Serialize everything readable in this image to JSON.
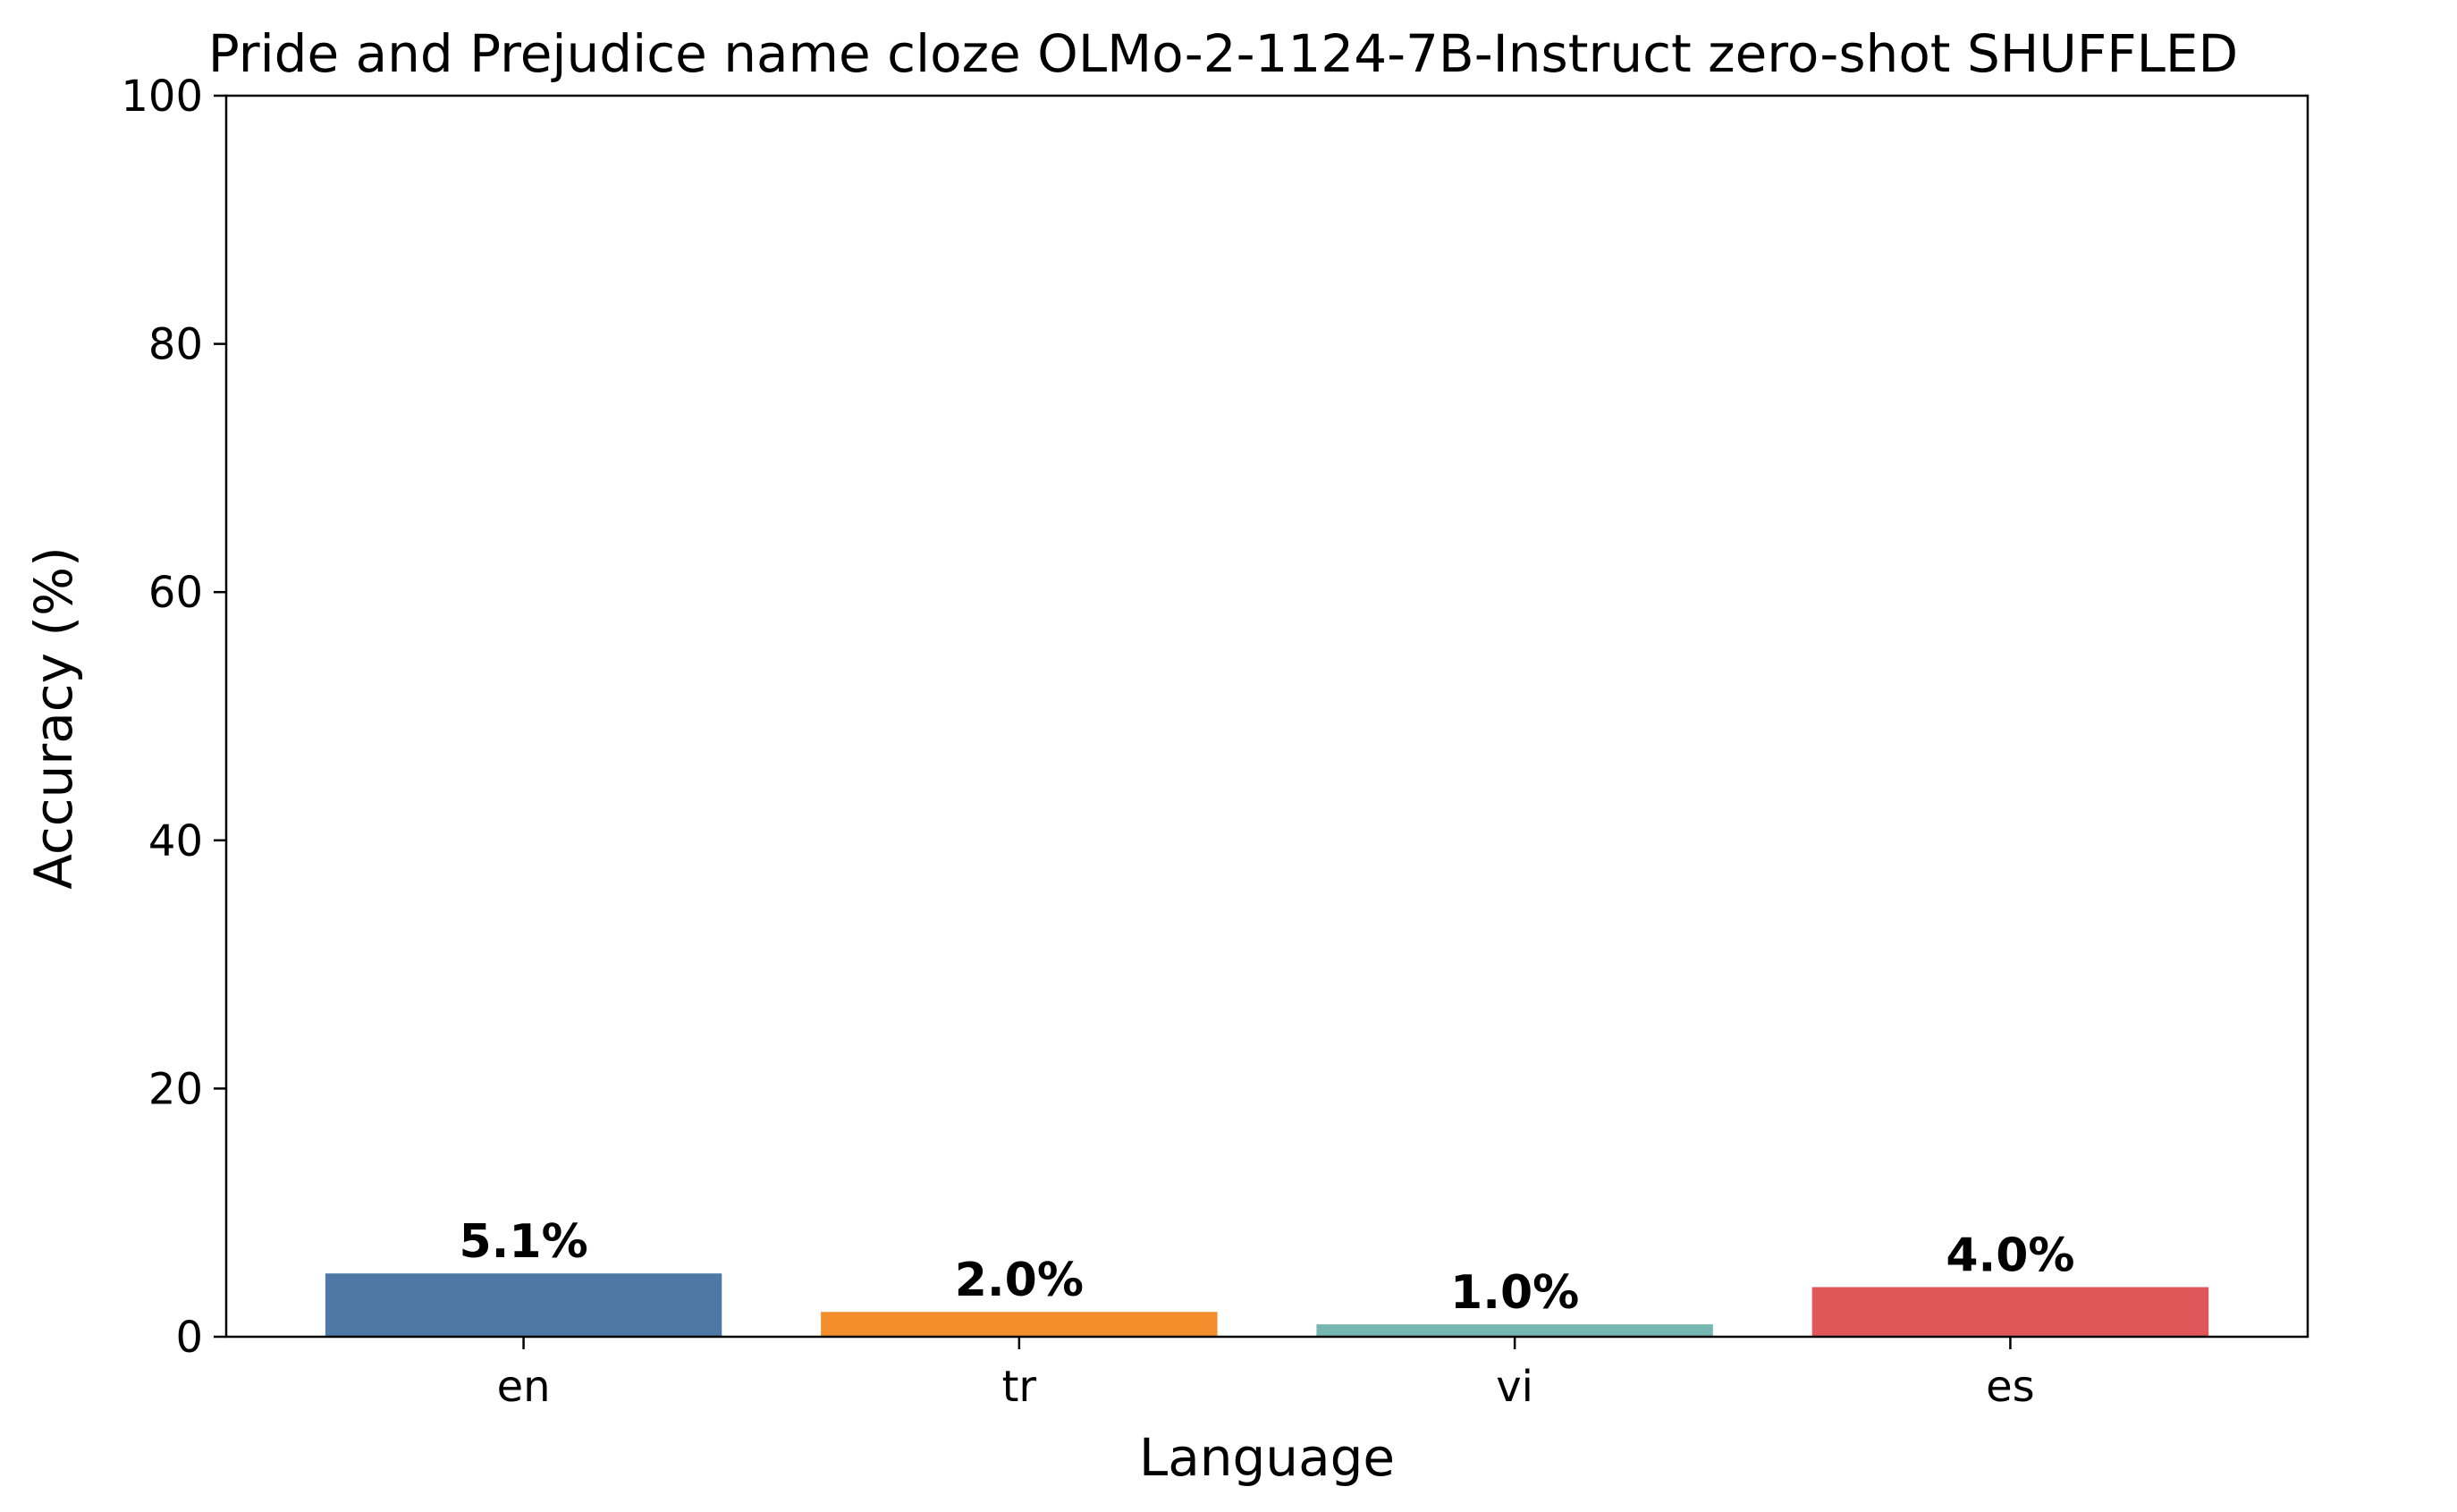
{
  "chart_data": {
    "type": "bar",
    "title": "Pride and Prejudice name cloze OLMo-2-1124-7B-Instruct zero-shot SHUFFLED",
    "xlabel": "Language",
    "ylabel": "Accuracy (%)",
    "categories": [
      "en",
      "tr",
      "vi",
      "es"
    ],
    "values": [
      5.1,
      2.0,
      1.0,
      4.0
    ],
    "value_labels": [
      "5.1%",
      "2.0%",
      "1.0%",
      "4.0%"
    ],
    "colors": [
      "#4e79a7",
      "#f28e2b",
      "#76b7b2",
      "#e15759"
    ],
    "ylim": [
      0,
      100
    ],
    "yticks": [
      0,
      20,
      40,
      60,
      80,
      100
    ],
    "grid": false,
    "legend": "none"
  }
}
